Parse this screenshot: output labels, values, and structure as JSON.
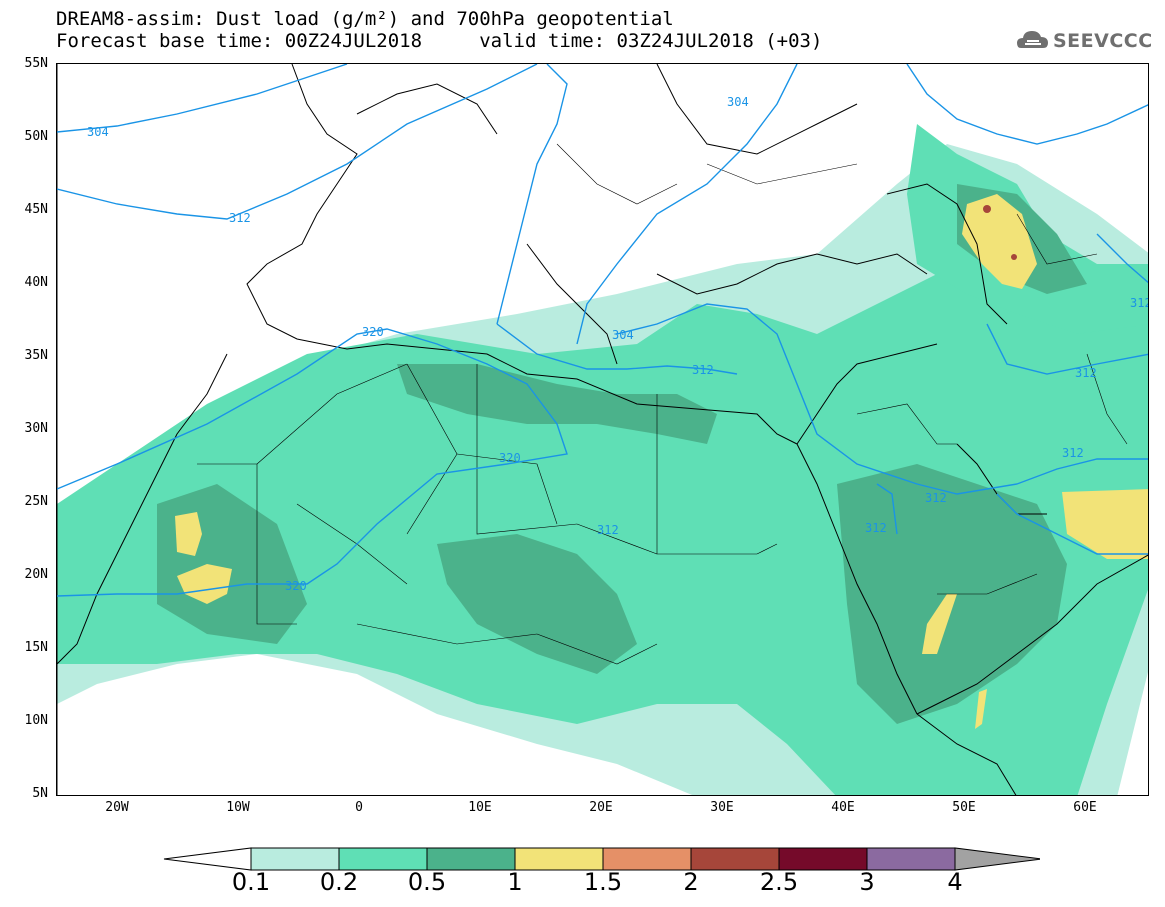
{
  "title": {
    "line1": "DREAM8-assim: Dust load (g/m²) and 700hPa geopotential",
    "line2": "Forecast base time: 00Z24JUL2018     valid time: 03Z24JUL2018 (+03)"
  },
  "logo": {
    "text": "SEEVCCC",
    "icon": "cloud-icon"
  },
  "map": {
    "lat_labels": [
      "55N",
      "50N",
      "45N",
      "40N",
      "35N",
      "30N",
      "25N",
      "20N",
      "15N",
      "10N",
      "5N"
    ],
    "lon_labels": [
      "20W",
      "10W",
      "0",
      "10E",
      "20E",
      "30E",
      "40E",
      "50E",
      "60E"
    ],
    "contour_labels": [
      "304",
      "312",
      "304",
      "312",
      "320",
      "304",
      "312",
      "320",
      "312",
      "312",
      "312",
      "312",
      "320",
      "312"
    ]
  },
  "colorbar": {
    "labels": [
      "0.1",
      "0.2",
      "0.5",
      "1",
      "1.5",
      "2",
      "2.5",
      "3",
      "4"
    ],
    "colors": [
      "#ffffff",
      "#b9ecdf",
      "#5fdfb5",
      "#4bb28b",
      "#f2e378",
      "#e59067",
      "#a6463a",
      "#750a2a",
      "#8b6aa0",
      "#a2a2a2"
    ]
  }
}
